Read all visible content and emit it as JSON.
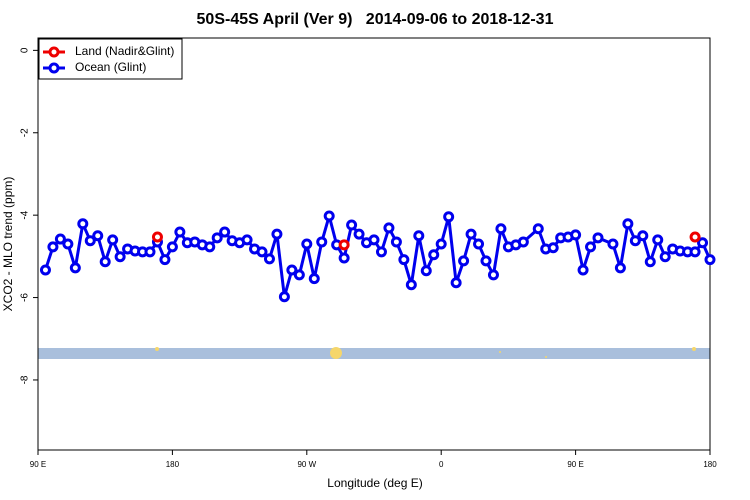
{
  "chart_data": {
    "type": "line",
    "title": "50S-45S April (Ver 9)   2014-09-06 to 2018-12-31",
    "x_label": "Longitude (deg E)",
    "y_label": "XCO2 - MLO trend (ppm)",
    "xlim": [
      90,
      540
    ],
    "ylim": [
      -9.7,
      0.3
    ],
    "xticks": [
      {
        "value": 90,
        "label": "90 E"
      },
      180,
      {
        "value": 270,
        "label": "90 W"
      },
      {
        "value": 360,
        "label": "0"
      },
      {
        "value": 450,
        "label": "90 E"
      },
      {
        "value": 540,
        "label": "180"
      }
    ],
    "yticks": [
      0,
      -2,
      -4,
      -6,
      -8
    ],
    "legend": "top-left",
    "series": [
      {
        "name": "Land (Nadir&Glint)",
        "color": "#ee0000",
        "x": [
          170,
          295,
          530
        ],
        "values": [
          -4.53,
          -4.72,
          -4.53
        ]
      },
      {
        "name": "Ocean (Glint)",
        "color": "#0000ee",
        "x": [
          95,
          100,
          105,
          110,
          115,
          120,
          125,
          130,
          135,
          140,
          145,
          150,
          155,
          160,
          165,
          170,
          175,
          180,
          185,
          190,
          195,
          200,
          205,
          210,
          215,
          220,
          225,
          230,
          235,
          240,
          245,
          250,
          255,
          260,
          265,
          270,
          275,
          280,
          285,
          290,
          295,
          300,
          305,
          310,
          315,
          320,
          325,
          330,
          335,
          340,
          345,
          350,
          355,
          360,
          365,
          370,
          375,
          380,
          385,
          390,
          395,
          400,
          405,
          410,
          415,
          425,
          430,
          435,
          440,
          445,
          450,
          455,
          460,
          465,
          475,
          480,
          485,
          490,
          495,
          500,
          505,
          510,
          515,
          520,
          525,
          530,
          535,
          540
        ],
        "values": [
          -5.33,
          -4.77,
          -4.58,
          -4.7,
          -5.28,
          -4.21,
          -4.62,
          -4.5,
          -5.13,
          -4.6,
          -5.01,
          -4.82,
          -4.87,
          -4.89,
          -4.89,
          -4.65,
          -5.08,
          -4.77,
          -4.41,
          -4.67,
          -4.65,
          -4.72,
          -4.77,
          -4.55,
          -4.41,
          -4.62,
          -4.67,
          -4.6,
          -4.82,
          -4.89,
          -5.06,
          -4.46,
          -5.98,
          -5.33,
          -5.45,
          -4.7,
          -5.54,
          -4.65,
          -4.02,
          -4.72,
          -5.04,
          -4.24,
          -4.46,
          -4.67,
          -4.6,
          -4.89,
          -4.31,
          -4.65,
          -5.08,
          -5.69,
          -4.5,
          -5.35,
          -4.96,
          -4.7,
          -4.04,
          -5.64,
          -5.11,
          -4.46,
          -4.7,
          -5.11,
          -5.45,
          -4.33,
          -4.77,
          -4.72,
          -4.65,
          -4.33,
          -4.82,
          -4.79,
          -4.55,
          -4.53,
          -4.48,
          -5.33,
          -4.77,
          -4.55,
          -4.7,
          -5.28,
          -4.21,
          -4.62,
          -4.5,
          -5.13,
          -4.6,
          -5.01,
          -4.82,
          -4.87,
          -4.89,
          -4.89,
          -4.67,
          -5.08
        ]
      }
    ]
  }
}
